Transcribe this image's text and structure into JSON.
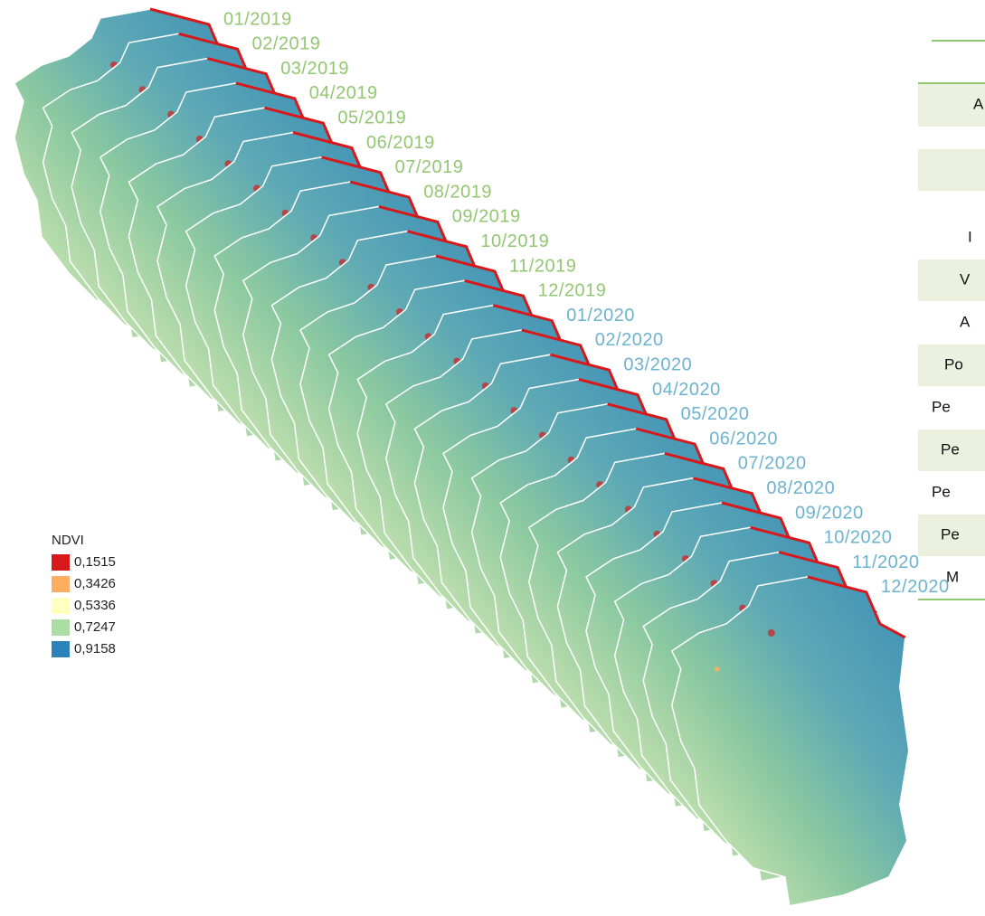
{
  "date_groups": [
    {
      "color": "#92c772",
      "dates": [
        "01/2019",
        "02/2019",
        "03/2019",
        "04/2019",
        "05/2019",
        "06/2019",
        "07/2019",
        "08/2019",
        "09/2019",
        "10/2019",
        "11/2019",
        "12/2019"
      ]
    },
    {
      "color": "#6db3cf",
      "dates": [
        "01/2020",
        "02/2020",
        "03/2020",
        "04/2020",
        "05/2020",
        "06/2020",
        "07/2020",
        "08/2020",
        "09/2020",
        "10/2020",
        "11/2020",
        "12/2020"
      ]
    }
  ],
  "legend": {
    "title": "NDVI",
    "items": [
      {
        "label": "0,1515",
        "color": "#d7191c"
      },
      {
        "label": "0,3426",
        "color": "#fdae61"
      },
      {
        "label": "0,5336",
        "color": "#ffffbf"
      },
      {
        "label": "0,7247",
        "color": "#abdda4"
      },
      {
        "label": "0,9158",
        "color": "#2b83ba"
      }
    ]
  },
  "table": {
    "rows": [
      "A",
      "I",
      "V",
      "A",
      "Po",
      "Pe",
      "Pe",
      "Pe",
      "Pe",
      "M"
    ]
  }
}
